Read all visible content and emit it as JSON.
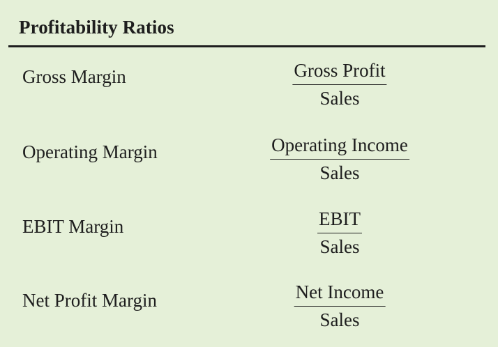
{
  "title": "Profitability Ratios",
  "ratios": [
    {
      "name": "Gross Margin",
      "numerator": "Gross Profit",
      "denominator": "Sales"
    },
    {
      "name": "Operating Margin",
      "numerator": "Operating Income",
      "denominator": "Sales"
    },
    {
      "name": "EBIT Margin",
      "numerator": "EBIT",
      "denominator": "Sales"
    },
    {
      "name": "Net Profit Margin",
      "numerator": "Net Income",
      "denominator": "Sales"
    }
  ]
}
